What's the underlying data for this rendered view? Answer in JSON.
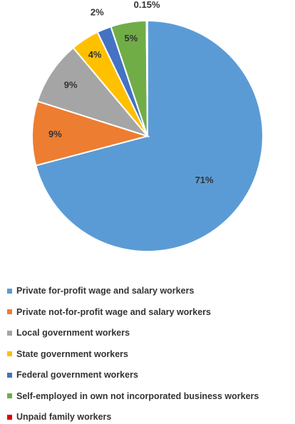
{
  "chart_data": {
    "type": "pie",
    "title": "",
    "slices": [
      {
        "label": "Private for-profit wage and salary workers",
        "value": 71,
        "display": "71%",
        "color": "#5b9bd5"
      },
      {
        "label": "Private not-for-profit wage and salary workers",
        "value": 9,
        "display": "9%",
        "color": "#ed7d31"
      },
      {
        "label": "Local government workers",
        "value": 9,
        "display": "9%",
        "color": "#a5a5a5"
      },
      {
        "label": "State government workers",
        "value": 4,
        "display": "4%",
        "color": "#ffc000"
      },
      {
        "label": "Federal government workers",
        "value": 2,
        "display": "2%",
        "color": "#4472c4"
      },
      {
        "label": "Self-employed in own not incorporated business workers",
        "value": 5,
        "display": "5%",
        "color": "#70ad47"
      },
      {
        "label": "Unpaid family workers",
        "value": 0.15,
        "display": "0.15%",
        "color": "#e00000"
      }
    ],
    "legend_position": "bottom"
  }
}
